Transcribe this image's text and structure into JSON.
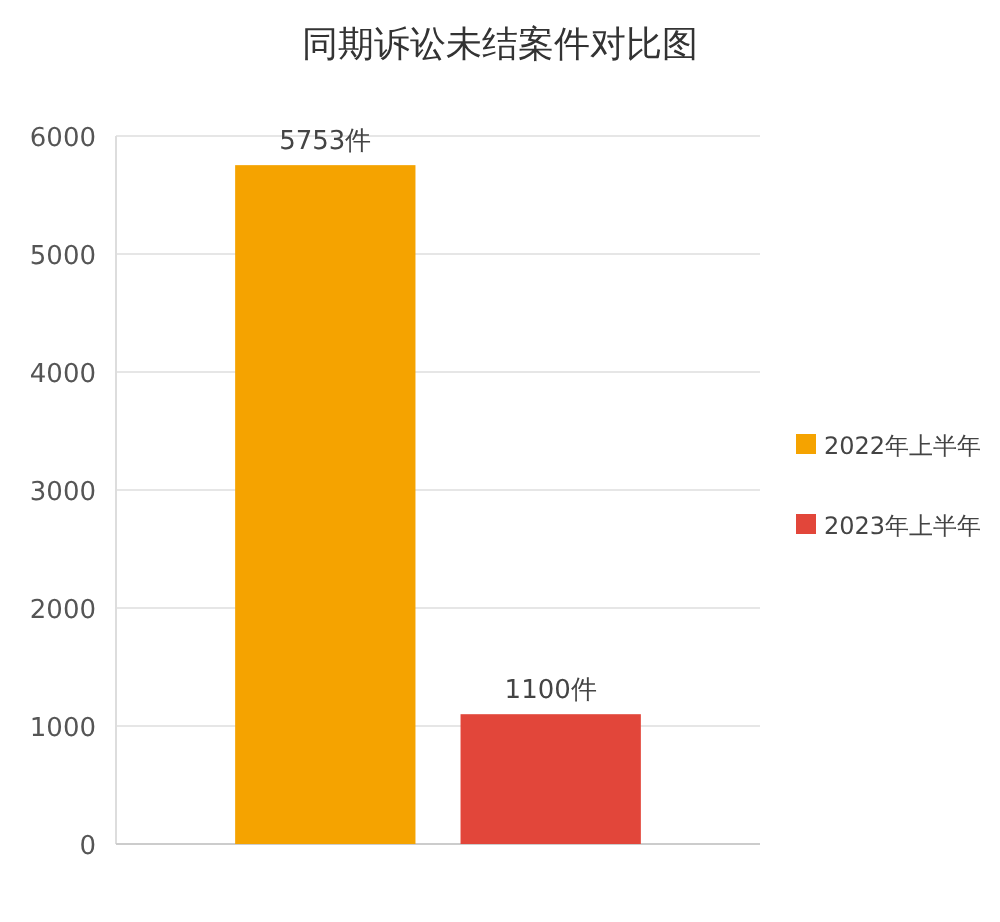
{
  "chart_data": {
    "type": "bar",
    "title": "同期诉讼未结案件对比图",
    "categories": [
      null
    ],
    "series": [
      {
        "name": "2022年上半年",
        "color": "#f5a300",
        "values": [
          5753
        ],
        "value_labels": [
          "5753件"
        ]
      },
      {
        "name": "2023年上半年",
        "color": "#e2463a",
        "values": [
          1100
        ],
        "value_labels": [
          "1100件"
        ]
      }
    ],
    "ylim": [
      0,
      6000
    ],
    "yticks": [
      0,
      1000,
      2000,
      3000,
      4000,
      5000,
      6000
    ],
    "grid": "y",
    "legend": "right"
  }
}
